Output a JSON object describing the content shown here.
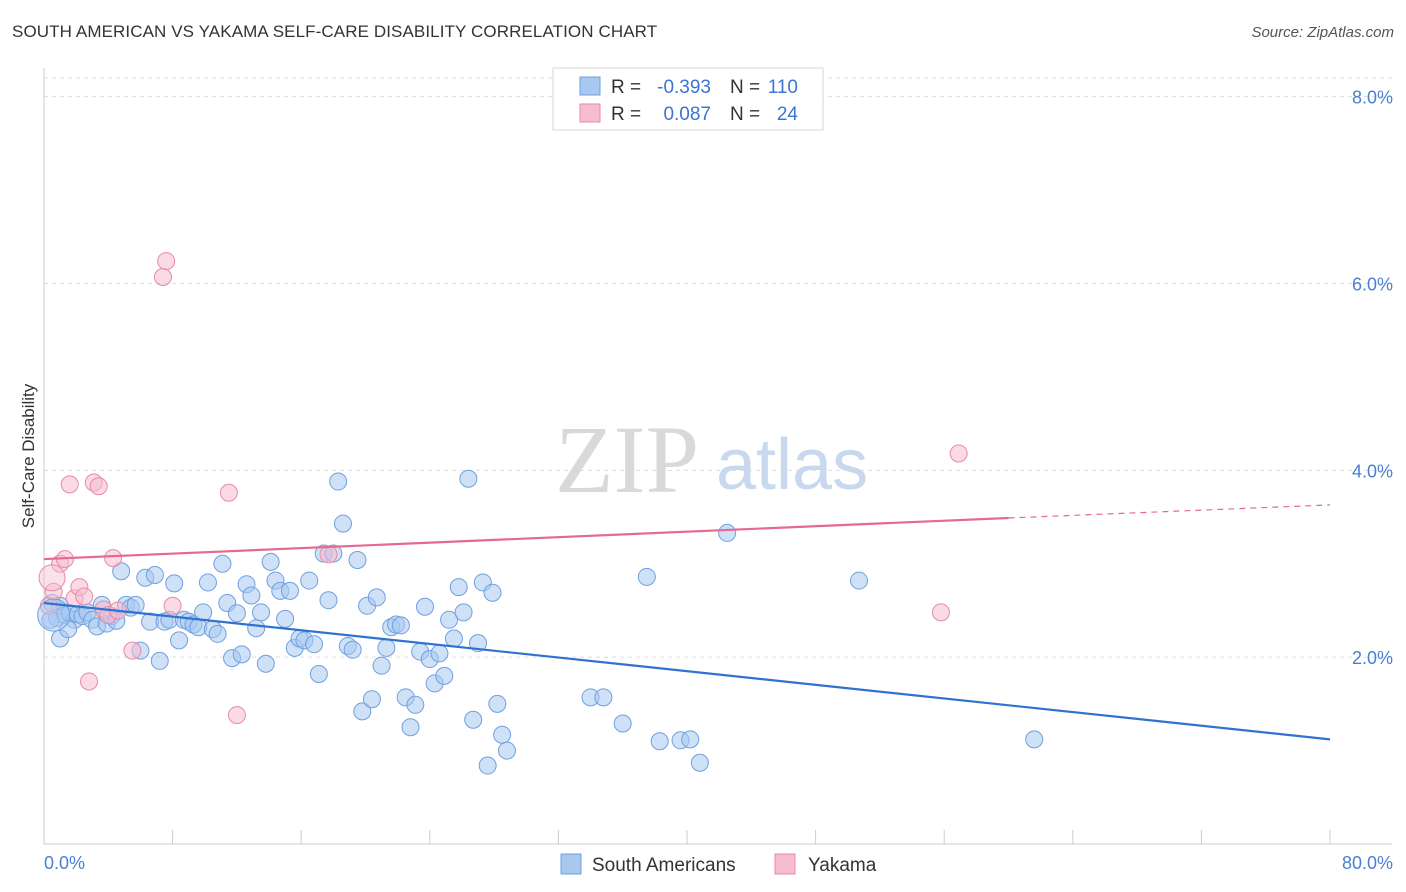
{
  "header": {
    "title": "SOUTH AMERICAN VS YAKAMA SELF-CARE DISABILITY CORRELATION CHART",
    "source": "Source: ZipAtlas.com"
  },
  "watermark": {
    "zip": "ZIP",
    "atlas": "atlas"
  },
  "legend": {
    "rows": [
      {
        "r_label": "R =",
        "r_value": "-0.393",
        "n_label": "N =",
        "n_value": "110",
        "color": "#a8c8f0",
        "stroke": "#6fa0e0"
      },
      {
        "r_label": "R =",
        "r_value": "0.087",
        "n_label": "N =",
        "n_value": "24",
        "color": "#f6bcd0",
        "stroke": "#e88aa8"
      }
    ]
  },
  "bottom_legend": [
    {
      "label": "South Americans",
      "color": "#a8c8f0",
      "stroke": "#6fa0e0"
    },
    {
      "label": "Yakama",
      "color": "#f6bcd0",
      "stroke": "#e88aa8"
    }
  ],
  "chart_data": {
    "type": "scatter",
    "title": "SOUTH AMERICAN VS YAKAMA SELF-CARE DISABILITY CORRELATION CHART",
    "xlabel": "",
    "ylabel": "Self-Care Disability",
    "xlim": [
      0,
      80
    ],
    "ylim": [
      0,
      8.2
    ],
    "x_tick_labels": [
      "0.0%",
      "80.0%"
    ],
    "y_ticks": [
      2,
      4,
      6,
      8
    ],
    "y_tick_labels": [
      "2.0%",
      "4.0%",
      "6.0%",
      "8.0%"
    ],
    "grid": true,
    "series": [
      {
        "name": "South Americans",
        "color": "#a8c8f0",
        "stroke": "#6fa0e0",
        "trend": {
          "x": [
            0,
            80
          ],
          "y": [
            2.58,
            1.12
          ],
          "color": "#2f72d0"
        },
        "points": [
          [
            0.5,
            2.58
          ],
          [
            0.8,
            2.42
          ],
          [
            1.0,
            2.55
          ],
          [
            1.3,
            2.45
          ],
          [
            1.6,
            2.47
          ],
          [
            1.9,
            2.4
          ],
          [
            2.1,
            2.46
          ],
          [
            2.4,
            2.44
          ],
          [
            2.7,
            2.48
          ],
          [
            3.0,
            2.4
          ],
          [
            3.3,
            2.33
          ],
          [
            3.6,
            2.56
          ],
          [
            3.9,
            2.36
          ],
          [
            4.2,
            2.44
          ],
          [
            4.5,
            2.39
          ],
          [
            4.8,
            2.92
          ],
          [
            5.1,
            2.56
          ],
          [
            5.4,
            2.53
          ],
          [
            5.7,
            2.56
          ],
          [
            6.0,
            2.07
          ],
          [
            6.3,
            2.85
          ],
          [
            6.6,
            2.38
          ],
          [
            6.9,
            2.88
          ],
          [
            7.2,
            1.96
          ],
          [
            7.5,
            2.38
          ],
          [
            7.8,
            2.4
          ],
          [
            8.1,
            2.79
          ],
          [
            8.4,
            2.18
          ],
          [
            8.7,
            2.4
          ],
          [
            9.0,
            2.38
          ],
          [
            9.3,
            2.35
          ],
          [
            9.6,
            2.32
          ],
          [
            9.9,
            2.48
          ],
          [
            10.2,
            2.8
          ],
          [
            10.5,
            2.3
          ],
          [
            10.8,
            2.25
          ],
          [
            11.1,
            3.0
          ],
          [
            11.4,
            2.58
          ],
          [
            11.7,
            1.99
          ],
          [
            12.0,
            2.47
          ],
          [
            12.3,
            2.03
          ],
          [
            12.6,
            2.78
          ],
          [
            12.9,
            2.66
          ],
          [
            13.2,
            2.31
          ],
          [
            13.5,
            2.48
          ],
          [
            13.8,
            1.93
          ],
          [
            14.1,
            3.02
          ],
          [
            14.4,
            2.82
          ],
          [
            14.7,
            2.71
          ],
          [
            15.0,
            2.41
          ],
          [
            15.3,
            2.71
          ],
          [
            15.6,
            2.1
          ],
          [
            15.9,
            2.2
          ],
          [
            16.2,
            2.18
          ],
          [
            16.5,
            2.82
          ],
          [
            16.8,
            2.14
          ],
          [
            17.1,
            1.82
          ],
          [
            17.4,
            3.11
          ],
          [
            17.7,
            2.61
          ],
          [
            18.0,
            3.11
          ],
          [
            18.3,
            3.88
          ],
          [
            18.6,
            3.43
          ],
          [
            18.9,
            2.12
          ],
          [
            19.2,
            2.08
          ],
          [
            19.5,
            3.04
          ],
          [
            19.8,
            1.42
          ],
          [
            20.1,
            2.55
          ],
          [
            20.4,
            1.55
          ],
          [
            20.7,
            2.64
          ],
          [
            21.0,
            1.91
          ],
          [
            21.3,
            2.1
          ],
          [
            21.6,
            2.32
          ],
          [
            21.9,
            2.35
          ],
          [
            22.2,
            2.34
          ],
          [
            22.5,
            1.57
          ],
          [
            22.8,
            1.25
          ],
          [
            23.1,
            1.49
          ],
          [
            23.4,
            2.06
          ],
          [
            23.7,
            2.54
          ],
          [
            24.0,
            1.98
          ],
          [
            24.3,
            1.72
          ],
          [
            24.6,
            2.04
          ],
          [
            24.9,
            1.8
          ],
          [
            25.2,
            2.4
          ],
          [
            25.5,
            2.2
          ],
          [
            25.8,
            2.75
          ],
          [
            26.1,
            2.48
          ],
          [
            26.4,
            3.91
          ],
          [
            26.7,
            1.33
          ],
          [
            27.0,
            2.15
          ],
          [
            27.3,
            2.8
          ],
          [
            27.6,
            0.84
          ],
          [
            27.9,
            2.69
          ],
          [
            28.2,
            1.5
          ],
          [
            28.5,
            1.17
          ],
          [
            28.8,
            1.0
          ],
          [
            34.0,
            1.57
          ],
          [
            34.8,
            1.57
          ],
          [
            36.0,
            1.29
          ],
          [
            37.5,
            2.86
          ],
          [
            38.3,
            1.1
          ],
          [
            39.6,
            1.11
          ],
          [
            40.2,
            1.12
          ],
          [
            40.8,
            0.87
          ],
          [
            42.5,
            3.33
          ],
          [
            50.7,
            2.82
          ],
          [
            61.6,
            1.12
          ],
          [
            1.0,
            2.2
          ],
          [
            0.4,
            2.4
          ],
          [
            1.5,
            2.3
          ]
        ]
      },
      {
        "name": "Yakama",
        "color": "#f6bcd0",
        "stroke": "#e88aa8",
        "trend": {
          "x": [
            0,
            60
          ],
          "y": [
            3.05,
            3.49
          ],
          "dashed_to": [
            80,
            3.63
          ],
          "color": "#e46a92"
        },
        "points": [
          [
            0.3,
            2.55
          ],
          [
            0.6,
            2.7
          ],
          [
            1.0,
            3.0
          ],
          [
            1.3,
            3.05
          ],
          [
            1.6,
            3.85
          ],
          [
            1.9,
            2.63
          ],
          [
            2.2,
            2.75
          ],
          [
            2.5,
            2.65
          ],
          [
            2.8,
            1.74
          ],
          [
            3.1,
            3.87
          ],
          [
            3.4,
            3.83
          ],
          [
            3.7,
            2.51
          ],
          [
            4.0,
            2.45
          ],
          [
            4.3,
            3.06
          ],
          [
            4.6,
            2.5
          ],
          [
            5.5,
            2.07
          ],
          [
            7.4,
            6.07
          ],
          [
            7.6,
            6.24
          ],
          [
            8.0,
            2.55
          ],
          [
            11.5,
            3.76
          ],
          [
            12.0,
            1.38
          ],
          [
            17.7,
            3.1
          ],
          [
            55.8,
            2.48
          ],
          [
            56.9,
            4.18
          ]
        ]
      }
    ]
  }
}
